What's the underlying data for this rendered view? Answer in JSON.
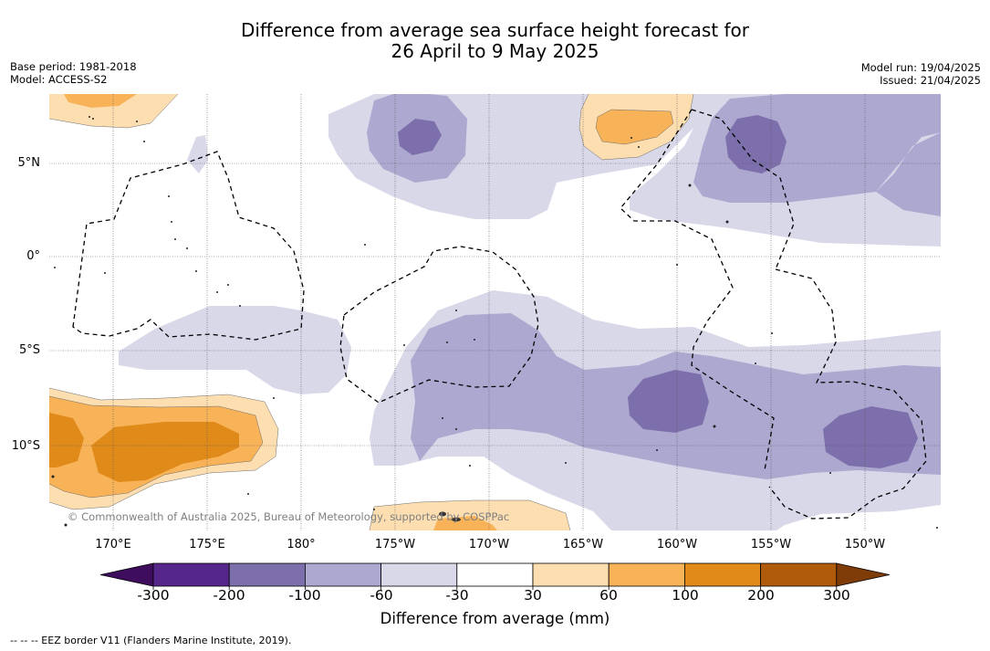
{
  "title_line1": "Difference from average sea surface height forecast for",
  "title_line2": "26 April to 9 May 2025",
  "meta_left": {
    "base_period": "Base period: 1981-2018",
    "model": "Model: ACCESS-S2"
  },
  "meta_right": {
    "model_run": "Model run: 19/04/2025",
    "issued": "Issued: 21/04/2025"
  },
  "copyright": "© Commonwealth of Australia 2025, Bureau of Meteorology, supported by COSPPac",
  "lat_labels": [
    "5°N",
    "0°",
    "5°S",
    "10°S"
  ],
  "lon_labels": [
    "170°E",
    "175°E",
    "180°",
    "175°W",
    "170°W",
    "165°W",
    "160°W",
    "155°W",
    "150°W"
  ],
  "colorbar": {
    "ticks": [
      "-300",
      "-200",
      "-100",
      "-60",
      "-30",
      "30",
      "60",
      "100",
      "200",
      "300"
    ],
    "title": "Difference from average (mm)",
    "colors": [
      "#3f0d5e",
      "#56278a",
      "#7d6fab",
      "#aca8d0",
      "#d8d8e9",
      "#ffffff",
      "#fcdeb1",
      "#f8b358",
      "#e08a1a",
      "#b05a0c",
      "#7f3b08"
    ]
  },
  "footer": "-- -- -- EEZ border V11 (Flanders Marine Institute, 2019)."
}
